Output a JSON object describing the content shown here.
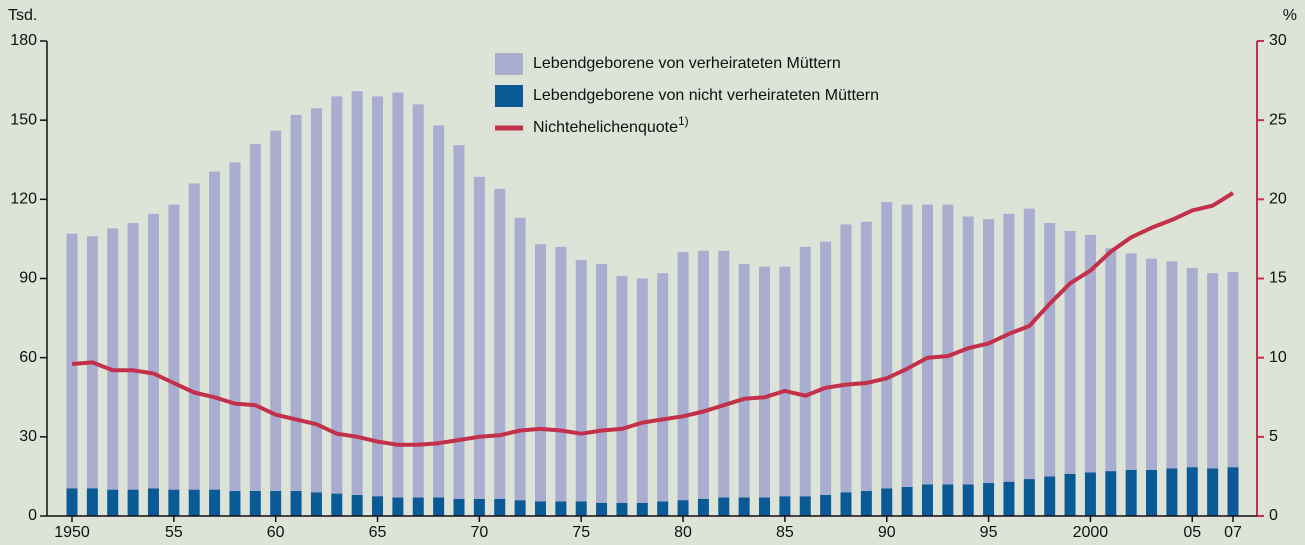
{
  "chart_data": {
    "type": "bar",
    "ylabel": "Tsd.",
    "y2label": "%",
    "legend_footnote": "1)",
    "categories": [
      "1950",
      null,
      null,
      null,
      null,
      "55",
      null,
      null,
      null,
      null,
      "60",
      null,
      null,
      null,
      null,
      "65",
      null,
      null,
      null,
      null,
      "70",
      null,
      null,
      null,
      null,
      "75",
      null,
      null,
      null,
      null,
      "80",
      null,
      null,
      null,
      null,
      "85",
      null,
      null,
      null,
      null,
      "90",
      null,
      null,
      null,
      null,
      "95",
      null,
      null,
      null,
      null,
      "2000",
      null,
      null,
      null,
      null,
      "05",
      null,
      "07"
    ],
    "ylim": [
      0,
      180
    ],
    "yticks": [
      0,
      30,
      60,
      90,
      120,
      150,
      180
    ],
    "y2lim": [
      0,
      30
    ],
    "y2ticks": [
      0,
      5,
      10,
      15,
      20,
      25,
      30
    ],
    "series": [
      {
        "name": "Lebendgeborene von verheirateten Müttern",
        "type": "bar",
        "color": "#a9adcf",
        "values": [
          96.5,
          95.5,
          99,
          101,
          104,
          108,
          116,
          120.5,
          124.5,
          131.5,
          136.5,
          142.5,
          145.5,
          150.5,
          153,
          151.5,
          153.5,
          149,
          141,
          134,
          122,
          117.5,
          107,
          97.5,
          96.5,
          91.5,
          90.5,
          86,
          85,
          86.5,
          94,
          94,
          93.5,
          88.5,
          87.5,
          87,
          94.5,
          96,
          101.5,
          102,
          108.5,
          107,
          106,
          106,
          101.5,
          100,
          101.5,
          102.5,
          96,
          92,
          90,
          84.5,
          82,
          80,
          78.5,
          75.5,
          74,
          74
        ]
      },
      {
        "name": "Lebendgeborene von nicht verheirateten Müttern",
        "type": "bar",
        "color": "#0a5a96",
        "values": [
          10.5,
          10.5,
          10,
          10,
          10.5,
          10,
          10,
          10,
          9.5,
          9.5,
          9.5,
          9.5,
          9,
          8.5,
          8,
          7.5,
          7,
          7,
          7,
          6.5,
          6.5,
          6.5,
          6,
          5.5,
          5.5,
          5.5,
          5,
          5,
          5,
          5.5,
          6,
          6.5,
          7,
          7,
          7,
          7.5,
          7.5,
          8,
          9,
          9.5,
          10.5,
          11,
          12,
          12,
          12,
          12.5,
          13,
          14,
          15,
          16,
          16.5,
          17,
          17.5,
          17.5,
          18,
          18.5,
          18,
          18.5
        ]
      },
      {
        "name": "Nichtehelichenquote",
        "type": "line",
        "axis": "y2",
        "color": "#c2304a",
        "values": [
          9.6,
          9.7,
          9.2,
          9.2,
          9.0,
          8.4,
          7.8,
          7.5,
          7.1,
          7.0,
          6.4,
          6.1,
          5.8,
          5.2,
          5.0,
          4.7,
          4.5,
          4.5,
          4.6,
          4.8,
          5.0,
          5.1,
          5.4,
          5.5,
          5.4,
          5.2,
          5.4,
          5.5,
          5.9,
          6.1,
          6.3,
          6.6,
          7.0,
          7.4,
          7.5,
          7.9,
          7.6,
          8.1,
          8.3,
          8.4,
          8.7,
          9.3,
          10.0,
          10.1,
          10.6,
          10.9,
          11.5,
          12.0,
          13.4,
          14.7,
          15.5,
          16.7,
          17.6,
          18.2,
          18.7,
          19.3,
          19.6,
          20.4
        ]
      }
    ]
  }
}
